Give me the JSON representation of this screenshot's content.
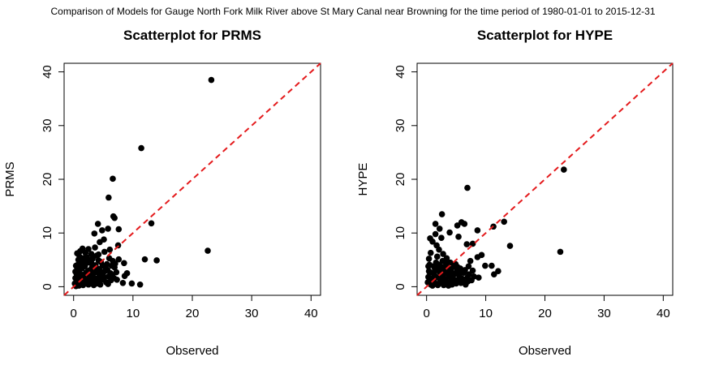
{
  "suptitle": "Comparison of Models for Gauge North Fork Milk River above St Mary Canal near Browning for the time period of 1980-01-01 to 2015-12-31",
  "chart_data": [
    {
      "type": "scatter",
      "title": "Scatterplot for PRMS",
      "xlabel": "Observed",
      "ylabel": "PRMS",
      "xlim": [
        0,
        40
      ],
      "ylim": [
        0,
        40
      ],
      "xticks": [
        "0",
        "10",
        "20",
        "30",
        "40"
      ],
      "yticks": [
        "0",
        "10",
        "20",
        "30",
        "40"
      ],
      "reference_line": {
        "type": "1:1",
        "color": "#e41a1c",
        "style": "dashed"
      },
      "points": [
        [
          23.2,
          38.5
        ],
        [
          11.4,
          25.8
        ],
        [
          6.6,
          20.1
        ],
        [
          5.9,
          16.6
        ],
        [
          6.7,
          13.1
        ],
        [
          6.9,
          12.8
        ],
        [
          13.1,
          11.8
        ],
        [
          4.1,
          11.7
        ],
        [
          5.8,
          10.8
        ],
        [
          7.6,
          10.7
        ],
        [
          4.8,
          10.5
        ],
        [
          3.5,
          9.9
        ],
        [
          5.1,
          8.8
        ],
        [
          4.4,
          8.3
        ],
        [
          7.5,
          7.7
        ],
        [
          22.6,
          6.7
        ],
        [
          1.5,
          7.1
        ],
        [
          2.5,
          7.0
        ],
        [
          3.6,
          7.3
        ],
        [
          5.2,
          6.5
        ],
        [
          6.1,
          6.9
        ],
        [
          0.6,
          6.2
        ],
        [
          1.1,
          6.6
        ],
        [
          2.0,
          6.3
        ],
        [
          3.0,
          6.1
        ],
        [
          4.2,
          6.0
        ],
        [
          12.0,
          5.1
        ],
        [
          14.0,
          4.9
        ],
        [
          7.6,
          5.1
        ],
        [
          8.5,
          4.4
        ],
        [
          9.0,
          2.5
        ],
        [
          8.6,
          2.0
        ],
        [
          8.3,
          0.7
        ],
        [
          9.8,
          0.6
        ],
        [
          11.2,
          0.4
        ],
        [
          6.6,
          4.8
        ],
        [
          6.9,
          3.6
        ],
        [
          7.2,
          2.7
        ],
        [
          6.3,
          1.2
        ],
        [
          5.0,
          2.0
        ],
        [
          5.5,
          0.8
        ],
        [
          4.5,
          1.2
        ],
        [
          4.0,
          0.6
        ],
        [
          3.5,
          1.1
        ],
        [
          3.0,
          0.6
        ],
        [
          2.5,
          0.4
        ],
        [
          2.0,
          1.0
        ],
        [
          1.6,
          0.3
        ],
        [
          1.2,
          0.8
        ],
        [
          0.9,
          0.2
        ],
        [
          0.6,
          0.5
        ],
        [
          0.4,
          0.1
        ],
        [
          0.3,
          1.6
        ],
        [
          0.5,
          2.4
        ],
        [
          0.6,
          3.2
        ],
        [
          0.7,
          4.1
        ],
        [
          0.8,
          5.0
        ],
        [
          1.0,
          5.6
        ],
        [
          1.3,
          4.4
        ],
        [
          1.4,
          3.4
        ],
        [
          1.5,
          2.2
        ],
        [
          1.7,
          1.6
        ],
        [
          1.8,
          4.9
        ],
        [
          1.9,
          3.8
        ],
        [
          2.1,
          2.6
        ],
        [
          2.2,
          5.5
        ],
        [
          2.3,
          1.8
        ],
        [
          2.6,
          3.0
        ],
        [
          2.7,
          4.5
        ],
        [
          2.8,
          2.1
        ],
        [
          3.1,
          3.6
        ],
        [
          3.2,
          5.2
        ],
        [
          3.3,
          2.4
        ],
        [
          3.4,
          1.6
        ],
        [
          3.7,
          4.0
        ],
        [
          3.8,
          2.9
        ],
        [
          3.9,
          5.8
        ],
        [
          4.3,
          3.3
        ],
        [
          4.4,
          2.2
        ],
        [
          4.6,
          4.6
        ],
        [
          4.7,
          1.7
        ],
        [
          4.9,
          3.9
        ],
        [
          5.3,
          2.9
        ],
        [
          5.6,
          4.2
        ],
        [
          5.7,
          3.1
        ],
        [
          5.9,
          1.9
        ],
        [
          6.0,
          5.3
        ],
        [
          6.2,
          2.5
        ],
        [
          6.4,
          3.9
        ],
        [
          6.8,
          1.6
        ],
        [
          7.0,
          4.3
        ],
        [
          7.3,
          1.3
        ],
        [
          0.2,
          0.6
        ],
        [
          0.3,
          2.8
        ],
        [
          0.4,
          3.9
        ],
        [
          0.5,
          1.1
        ],
        [
          0.8,
          1.4
        ],
        [
          0.9,
          2.9
        ],
        [
          1.0,
          1.2
        ],
        [
          1.1,
          3.3
        ],
        [
          1.2,
          4.7
        ],
        [
          1.3,
          2.0
        ],
        [
          1.6,
          5.3
        ],
        [
          1.7,
          0.9
        ],
        [
          1.9,
          1.4
        ],
        [
          2.0,
          4.2
        ],
        [
          2.2,
          0.7
        ],
        [
          2.4,
          2.9
        ],
        [
          2.5,
          5.1
        ],
        [
          2.6,
          1.3
        ],
        [
          2.9,
          3.2
        ],
        [
          3.0,
          4.4
        ],
        [
          3.2,
          1.9
        ],
        [
          3.4,
          0.3
        ],
        [
          3.6,
          3.4
        ],
        [
          3.8,
          1.5
        ],
        [
          4.1,
          2.6
        ],
        [
          4.2,
          4.9
        ],
        [
          4.5,
          0.4
        ],
        [
          4.8,
          2.7
        ],
        [
          5.1,
          1.3
        ],
        [
          5.4,
          3.6
        ],
        [
          5.8,
          0.5
        ],
        [
          6.5,
          2.1
        ]
      ]
    },
    {
      "type": "scatter",
      "title": "Scatterplot for HYPE",
      "xlabel": "Observed",
      "ylabel": "HYPE",
      "xlim": [
        0,
        40
      ],
      "ylim": [
        0,
        40
      ],
      "xticks": [
        "0",
        "10",
        "20",
        "30",
        "40"
      ],
      "yticks": [
        "0",
        "10",
        "20",
        "30",
        "40"
      ],
      "reference_line": {
        "type": "1:1",
        "color": "#e41a1c",
        "style": "dashed"
      },
      "points": [
        [
          23.2,
          21.8
        ],
        [
          6.9,
          18.4
        ],
        [
          2.6,
          13.5
        ],
        [
          13.1,
          12.1
        ],
        [
          11.3,
          11.2
        ],
        [
          5.9,
          12.0
        ],
        [
          6.4,
          11.7
        ],
        [
          5.2,
          11.4
        ],
        [
          1.5,
          11.7
        ],
        [
          8.6,
          10.5
        ],
        [
          2.2,
          10.8
        ],
        [
          3.9,
          10.1
        ],
        [
          0.6,
          9.0
        ],
        [
          1.5,
          9.8
        ],
        [
          2.5,
          9.1
        ],
        [
          5.4,
          9.3
        ],
        [
          14.1,
          7.6
        ],
        [
          7.8,
          8.0
        ],
        [
          6.8,
          7.9
        ],
        [
          22.6,
          6.5
        ],
        [
          9.3,
          5.9
        ],
        [
          11.0,
          3.9
        ],
        [
          12.1,
          2.9
        ],
        [
          11.4,
          2.3
        ],
        [
          9.9,
          3.9
        ],
        [
          8.6,
          5.5
        ],
        [
          7.4,
          4.8
        ],
        [
          7.8,
          3.0
        ],
        [
          8.0,
          1.9
        ],
        [
          8.8,
          1.7
        ],
        [
          7.0,
          1.0
        ],
        [
          6.2,
          0.9
        ],
        [
          5.6,
          1.8
        ],
        [
          5.1,
          2.8
        ],
        [
          4.6,
          3.7
        ],
        [
          4.0,
          4.5
        ],
        [
          3.4,
          5.3
        ],
        [
          2.8,
          6.1
        ],
        [
          2.1,
          6.9
        ],
        [
          1.7,
          7.7
        ],
        [
          1.0,
          8.4
        ],
        [
          0.7,
          6.3
        ],
        [
          0.4,
          5.2
        ],
        [
          0.3,
          3.8
        ],
        [
          0.5,
          2.7
        ],
        [
          0.6,
          1.6
        ],
        [
          0.8,
          0.6
        ],
        [
          1.0,
          0.2
        ],
        [
          1.2,
          1.2
        ],
        [
          1.3,
          2.3
        ],
        [
          1.4,
          3.4
        ],
        [
          1.6,
          4.5
        ],
        [
          1.8,
          5.6
        ],
        [
          2.0,
          0.5
        ],
        [
          2.2,
          1.5
        ],
        [
          2.3,
          2.6
        ],
        [
          2.5,
          3.7
        ],
        [
          2.7,
          4.8
        ],
        [
          2.9,
          0.3
        ],
        [
          3.1,
          1.4
        ],
        [
          3.2,
          2.5
        ],
        [
          3.4,
          3.6
        ],
        [
          3.6,
          0.8
        ],
        [
          3.8,
          1.9
        ],
        [
          4.1,
          2.9
        ],
        [
          4.3,
          0.4
        ],
        [
          4.5,
          1.5
        ],
        [
          4.8,
          2.4
        ],
        [
          5.0,
          0.6
        ],
        [
          5.3,
          1.3
        ],
        [
          5.5,
          2.2
        ],
        [
          5.8,
          0.7
        ],
        [
          6.0,
          1.5
        ],
        [
          6.3,
          2.6
        ],
        [
          6.6,
          0.4
        ],
        [
          6.9,
          1.7
        ],
        [
          7.2,
          2.3
        ],
        [
          7.6,
          1.2
        ],
        [
          4.9,
          4.2
        ],
        [
          5.7,
          3.4
        ],
        [
          6.5,
          3.1
        ],
        [
          7.1,
          3.8
        ],
        [
          0.2,
          0.8
        ],
        [
          0.3,
          1.8
        ],
        [
          0.4,
          2.9
        ],
        [
          0.5,
          4.1
        ],
        [
          0.7,
          0.4
        ],
        [
          0.9,
          1.3
        ],
        [
          1.1,
          2.6
        ],
        [
          1.2,
          3.8
        ],
        [
          1.4,
          0.7
        ],
        [
          1.6,
          1.8
        ],
        [
          1.8,
          3.1
        ],
        [
          1.9,
          0.3
        ],
        [
          2.1,
          4.1
        ],
        [
          2.4,
          1.1
        ],
        [
          2.6,
          2.1
        ],
        [
          2.8,
          3.2
        ],
        [
          3.0,
          0.6
        ],
        [
          3.3,
          4.3
        ],
        [
          3.5,
          2.7
        ],
        [
          3.7,
          0.2
        ],
        [
          3.9,
          3.3
        ],
        [
          4.2,
          1.1
        ],
        [
          4.4,
          2.0
        ],
        [
          4.7,
          0.9
        ],
        [
          5.2,
          3.7
        ],
        [
          5.9,
          2.9
        ]
      ]
    }
  ]
}
